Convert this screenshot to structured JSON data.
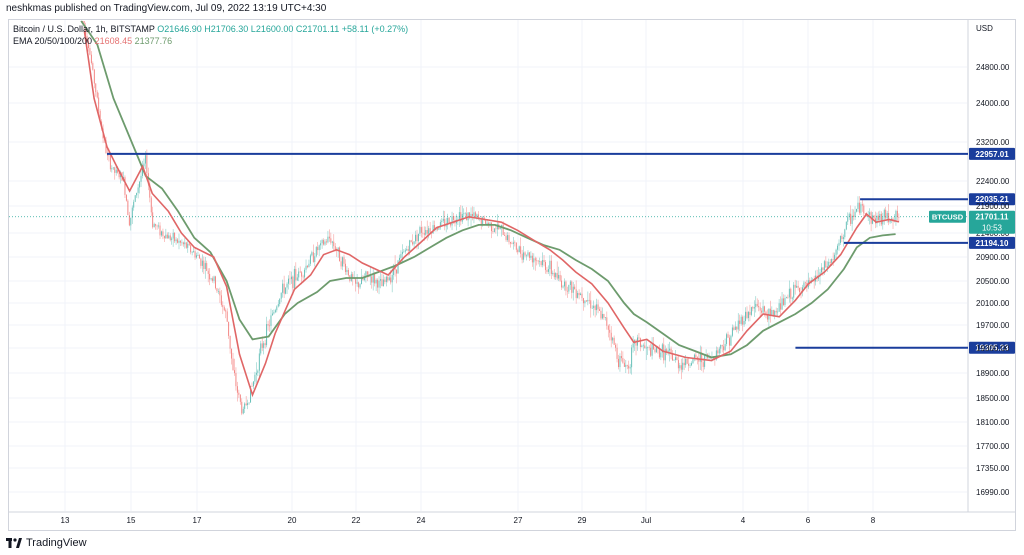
{
  "header": {
    "published": "neshkmas published on TradingView.com, Jul 09, 2022 13:19 UTC+4:30"
  },
  "legend": {
    "symbol": "Bitcoin / U.S. Dollar, 1h, BITSTAMP",
    "ohlc": "O21646.90  H21706.30  L21600.00  C21701.11  +58.11 (+0.27%)",
    "ema_label": "EMA 20/50/100/200",
    "ema_20": "21608.45",
    "ema_50": "21377.76"
  },
  "footer": {
    "brand": "TradingView"
  },
  "colors": {
    "up": "#26a69a",
    "down": "#ef5350",
    "ema20": "#e06666",
    "ema50": "#6d9b6d",
    "level_line": "#1a3d9c",
    "grid": "#f0f3fa",
    "axis_text": "#131722",
    "price_tag": "#26a69a"
  },
  "chart_data": {
    "type": "candlestick",
    "currency": "USD",
    "x_tick_labels": [
      "13",
      "15",
      "17",
      "20",
      "22",
      "24",
      "27",
      "29",
      "Jul",
      "4",
      "6",
      "8"
    ],
    "y_tick_labels": [
      "24800.00",
      "24000.00",
      "23200.00",
      "22400.00",
      "21900.00",
      "21400.00",
      "20900.00",
      "20500.00",
      "20100.00",
      "19700.00",
      "19300.00",
      "18900.00",
      "18500.00",
      "18100.00",
      "17700.00",
      "17350.00",
      "16990.00"
    ],
    "ema20": [
      [
        13.6,
        25600
      ],
      [
        13.9,
        24100
      ],
      [
        14.3,
        23100
      ],
      [
        14.6,
        22700
      ],
      [
        15.0,
        22200
      ],
      [
        15.4,
        22700
      ],
      [
        15.7,
        22150
      ],
      [
        16.2,
        21800
      ],
      [
        16.6,
        21400
      ],
      [
        17.0,
        21100
      ],
      [
        17.6,
        20900
      ],
      [
        18.0,
        20400
      ],
      [
        18.4,
        19200
      ],
      [
        18.8,
        18550
      ],
      [
        19.2,
        19050
      ],
      [
        19.5,
        19550
      ],
      [
        19.8,
        19950
      ],
      [
        20.1,
        20350
      ],
      [
        20.6,
        20600
      ],
      [
        21.0,
        20950
      ],
      [
        21.4,
        21050
      ],
      [
        21.8,
        20950
      ],
      [
        22.2,
        20800
      ],
      [
        22.6,
        20700
      ],
      [
        23.0,
        20600
      ],
      [
        23.5,
        20900
      ],
      [
        24.0,
        21200
      ],
      [
        24.5,
        21500
      ],
      [
        25.0,
        21600
      ],
      [
        25.5,
        21700
      ],
      [
        26.0,
        21650
      ],
      [
        26.5,
        21600
      ],
      [
        27.0,
        21450
      ],
      [
        27.5,
        21250
      ],
      [
        28.0,
        21050
      ],
      [
        28.4,
        20850
      ],
      [
        28.8,
        20650
      ],
      [
        29.3,
        20450
      ],
      [
        29.8,
        20100
      ],
      [
        30.3,
        19650
      ],
      [
        30.6,
        19400
      ],
      [
        31.0,
        19450
      ],
      [
        31.5,
        19250
      ],
      [
        32.2,
        19150
      ],
      [
        33.0,
        19100
      ],
      [
        33.6,
        19250
      ],
      [
        34.1,
        19600
      ],
      [
        34.6,
        19900
      ],
      [
        35.1,
        19850
      ],
      [
        35.6,
        20150
      ],
      [
        36.0,
        20450
      ],
      [
        36.5,
        20650
      ],
      [
        37.0,
        20950
      ],
      [
        37.5,
        21500
      ],
      [
        37.8,
        21750
      ],
      [
        38.1,
        21600
      ],
      [
        38.5,
        21650
      ],
      [
        38.8,
        21608
      ]
    ],
    "ema50": [
      [
        13.5,
        26200
      ],
      [
        14.0,
        25300
      ],
      [
        14.5,
        24100
      ],
      [
        15.0,
        23300
      ],
      [
        15.5,
        22500
      ],
      [
        16.0,
        22250
      ],
      [
        16.5,
        21800
      ],
      [
        17.0,
        21300
      ],
      [
        17.5,
        21000
      ],
      [
        18.0,
        20500
      ],
      [
        18.4,
        19800
      ],
      [
        18.8,
        19450
      ],
      [
        19.3,
        19500
      ],
      [
        19.8,
        19900
      ],
      [
        20.2,
        20100
      ],
      [
        20.8,
        20300
      ],
      [
        21.2,
        20500
      ],
      [
        21.7,
        20550
      ],
      [
        22.2,
        20550
      ],
      [
        22.7,
        20650
      ],
      [
        23.2,
        20750
      ],
      [
        23.8,
        20900
      ],
      [
        24.3,
        21100
      ],
      [
        24.8,
        21300
      ],
      [
        25.3,
        21450
      ],
      [
        25.8,
        21550
      ],
      [
        26.3,
        21550
      ],
      [
        26.8,
        21450
      ],
      [
        27.3,
        21300
      ],
      [
        27.8,
        21150
      ],
      [
        28.3,
        21050
      ],
      [
        28.8,
        20850
      ],
      [
        29.3,
        20700
      ],
      [
        29.8,
        20500
      ],
      [
        30.3,
        20100
      ],
      [
        30.6,
        19900
      ],
      [
        31.0,
        19750
      ],
      [
        31.5,
        19550
      ],
      [
        32.0,
        19350
      ],
      [
        32.5,
        19250
      ],
      [
        33.0,
        19150
      ],
      [
        33.6,
        19200
      ],
      [
        34.1,
        19350
      ],
      [
        34.6,
        19600
      ],
      [
        35.1,
        19750
      ],
      [
        35.6,
        19900
      ],
      [
        36.1,
        20100
      ],
      [
        36.6,
        20350
      ],
      [
        37.1,
        20700
      ],
      [
        37.5,
        21100
      ],
      [
        37.9,
        21300
      ],
      [
        38.3,
        21350
      ],
      [
        38.7,
        21377
      ]
    ],
    "candle_path": [
      [
        13.5,
        26000
      ],
      [
        13.7,
        25400
      ],
      [
        13.9,
        24500
      ],
      [
        14.1,
        23600
      ],
      [
        14.3,
        22900
      ],
      [
        14.5,
        22600
      ],
      [
        14.8,
        22450
      ],
      [
        15.0,
        21600
      ],
      [
        15.2,
        22150
      ],
      [
        15.5,
        22850
      ],
      [
        15.7,
        21600
      ],
      [
        16.0,
        21400
      ],
      [
        16.4,
        21250
      ],
      [
        16.8,
        21100
      ],
      [
        17.2,
        20850
      ],
      [
        17.6,
        20500
      ],
      [
        18.0,
        19850
      ],
      [
        18.2,
        18900
      ],
      [
        18.5,
        18250
      ],
      [
        18.8,
        18700
      ],
      [
        19.1,
        19350
      ],
      [
        19.4,
        19850
      ],
      [
        19.7,
        20300
      ],
      [
        20.0,
        20500
      ],
      [
        20.4,
        20700
      ],
      [
        20.8,
        21050
      ],
      [
        21.2,
        21300
      ],
      [
        21.6,
        20800
      ],
      [
        22.0,
        20400
      ],
      [
        22.4,
        20600
      ],
      [
        22.8,
        20400
      ],
      [
        23.2,
        20700
      ],
      [
        23.6,
        21100
      ],
      [
        24.0,
        21450
      ],
      [
        24.4,
        21500
      ],
      [
        24.8,
        21600
      ],
      [
        25.2,
        21750
      ],
      [
        25.6,
        21700
      ],
      [
        26.0,
        21600
      ],
      [
        26.5,
        21450
      ],
      [
        27.0,
        21050
      ],
      [
        27.5,
        20900
      ],
      [
        28.0,
        20700
      ],
      [
        28.4,
        20450
      ],
      [
        28.8,
        20350
      ],
      [
        29.2,
        20150
      ],
      [
        29.8,
        19700
      ],
      [
        30.1,
        19150
      ],
      [
        30.4,
        19000
      ],
      [
        30.7,
        19450
      ],
      [
        31.0,
        19250
      ],
      [
        31.5,
        19250
      ],
      [
        32.0,
        19050
      ],
      [
        32.5,
        19100
      ],
      [
        33.0,
        19150
      ],
      [
        33.5,
        19450
      ],
      [
        34.0,
        19850
      ],
      [
        34.4,
        20050
      ],
      [
        34.8,
        19850
      ],
      [
        35.2,
        20100
      ],
      [
        35.6,
        20350
      ],
      [
        36.0,
        20400
      ],
      [
        36.4,
        20650
      ],
      [
        36.8,
        20900
      ],
      [
        37.2,
        21600
      ],
      [
        37.6,
        21900
      ],
      [
        38.0,
        21650
      ],
      [
        38.4,
        21700
      ],
      [
        38.8,
        21701
      ]
    ],
    "horizontal_levels": [
      {
        "price": 22957.01,
        "label": "22957.01",
        "from_x": 14.3
      },
      {
        "price": 22035.21,
        "label": "22035.21",
        "from_x": 37.6
      },
      {
        "price": 21194.1,
        "label": "21194.10",
        "from_x": 37.1
      },
      {
        "price": 19305.23,
        "label": "19305.23",
        "from_x": 35.6
      }
    ],
    "last_price": {
      "symbol": "BTCUSD",
      "price": "21701.11",
      "countdown": "10:53"
    }
  }
}
